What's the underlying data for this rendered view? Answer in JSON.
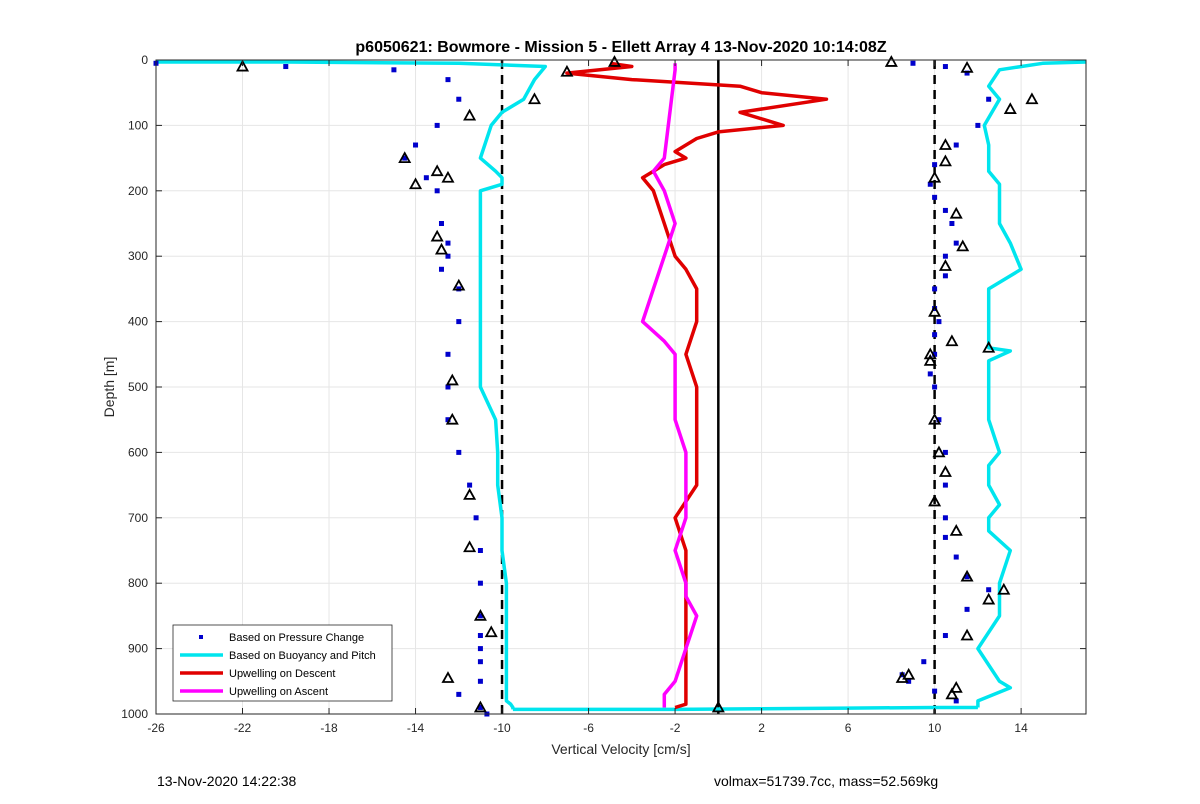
{
  "title": "p6050621: Bowmore - Mission 5 - Ellett Array 4 13-Nov-2020 10:14:08Z",
  "footer_left": "13-Nov-2020 14:22:38",
  "footer_right": "volmax=51739.7cc, mass=52.569kg",
  "chart_data": {
    "type": "scatter",
    "title": "p6050621: Bowmore - Mission 5 - Ellett Array 4 13-Nov-2020 10:14:08Z",
    "xlabel": "Vertical Velocity [cm/s]",
    "ylabel": "Depth [m]",
    "xlim": [
      -26,
      17
    ],
    "ylim": [
      0,
      1000
    ],
    "y_reversed": true,
    "xticks": [
      -26,
      -22,
      -18,
      -14,
      -10,
      -6,
      -2,
      2,
      6,
      10,
      14
    ],
    "xtick_labels": [
      "-26",
      "-22",
      "-18",
      "-14",
      "-10",
      "-6",
      "-2",
      "2",
      "6",
      "10",
      "14"
    ],
    "yticks": [
      0,
      100,
      200,
      300,
      400,
      500,
      600,
      700,
      800,
      900,
      1000
    ],
    "ytick_labels": [
      "0",
      "100",
      "200",
      "300",
      "400",
      "500",
      "600",
      "700",
      "800",
      "900",
      "1000"
    ],
    "grid": true,
    "legend_position": "bottom-left",
    "reference_lines": [
      {
        "x": -10,
        "style": "dashed",
        "color": "#000000"
      },
      {
        "x": 0,
        "style": "solid",
        "color": "#000000"
      },
      {
        "x": 10,
        "style": "dashed",
        "color": "#000000"
      }
    ],
    "series": [
      {
        "name": "Based on Pressure Change",
        "marker": "dot",
        "color": "#0000CC",
        "segments": [
          {
            "x": [
              -26,
              -20,
              -15,
              -12.5,
              -12,
              -13,
              -14,
              -14.5,
              -13.5,
              -13,
              -12.8,
              -12.5,
              -12.5,
              -12.8,
              -12,
              -12,
              -12.5,
              -12.5,
              -12.5,
              -12,
              -11.5,
              -11.2,
              -11,
              -11,
              -11,
              -11,
              -11,
              -11,
              -11,
              -12,
              -11,
              -10.7
            ],
            "y": [
              5,
              10,
              15,
              30,
              60,
              100,
              130,
              150,
              180,
              200,
              250,
              280,
              300,
              320,
              350,
              400,
              450,
              500,
              550,
              600,
              650,
              700,
              750,
              800,
              850,
              880,
              900,
              920,
              950,
              970,
              990,
              1000
            ]
          },
          {
            "x": [
              9,
              10.5,
              11.5,
              12.5,
              12,
              11,
              10,
              9.8,
              10,
              10.5,
              10.8,
              11,
              10.5,
              10.5,
              10,
              10,
              10.2,
              10,
              10,
              9.8,
              10,
              10.2,
              10.5,
              10.5,
              10.5,
              10.5,
              11,
              11.5,
              12.5,
              11.5,
              10.5,
              9.5,
              8.5,
              8.8,
              10,
              11
            ],
            "y": [
              5,
              10,
              20,
              60,
              100,
              130,
              160,
              190,
              210,
              230,
              250,
              280,
              300,
              330,
              350,
              380,
              400,
              420,
              450,
              480,
              500,
              550,
              600,
              650,
              700,
              730,
              760,
              790,
              810,
              840,
              880,
              920,
              940,
              950,
              965,
              980
            ]
          }
        ]
      },
      {
        "name": "Based on Buoyancy and Pitch",
        "marker": "line",
        "color": "#00E5EE",
        "segments": [
          {
            "x": [
              -26,
              -20,
              -12,
              -8,
              -8.5,
              -9,
              -10,
              -10.5,
              -11,
              -10.3,
              -10,
              -10,
              -11,
              -11,
              -11,
              -11,
              -11,
              -11,
              -11,
              -11,
              -10.3,
              -10.2,
              -10.2,
              -10,
              -10,
              -10,
              -9.8,
              -9.8,
              -9.8,
              -9.8,
              -9.8,
              -9.6,
              -9.5,
              -9.5
            ],
            "y": [
              3,
              3,
              5,
              10,
              30,
              60,
              80,
              100,
              150,
              170,
              180,
              190,
              200,
              250,
              300,
              350,
              400,
              450,
              480,
              500,
              550,
              600,
              650,
              700,
              720,
              750,
              800,
              850,
              900,
              950,
              980,
              985,
              990,
              993
            ]
          },
          {
            "x": [
              -9.5,
              -6,
              -2,
              2,
              6,
              10,
              12
            ],
            "y": [
              993,
              993,
              993,
              992,
              991,
              990,
              990
            ]
          },
          {
            "x": [
              17,
              15,
              13,
              12.5,
              13,
              12.3,
              12.5,
              12.5,
              12.5,
              13,
              13,
              13,
              13.5,
              14,
              12.5,
              12.5,
              12.5,
              12.5,
              12.5,
              12.5,
              13.5,
              12.5,
              12.5,
              12.5,
              13,
              12.5,
              12.5,
              13,
              12.5,
              12.5,
              13.5,
              13,
              13,
              13,
              12,
              13,
              13.5,
              12,
              12
            ],
            "y": [
              3,
              5,
              15,
              40,
              60,
              100,
              130,
              150,
              170,
              190,
              220,
              250,
              280,
              320,
              350,
              380,
              400,
              420,
              430,
              440,
              445,
              460,
              500,
              550,
              600,
              620,
              650,
              680,
              700,
              720,
              750,
              800,
              820,
              850,
              900,
              950,
              960,
              980,
              990
            ]
          }
        ]
      },
      {
        "name": "Upwelling on Descent",
        "marker": "line",
        "color": "#E00000",
        "segments": [
          {
            "x": [
              -5,
              -4,
              -7,
              -4,
              1,
              2,
              5,
              1,
              3,
              0,
              -1,
              -2,
              -1.5,
              -2.5,
              -3,
              -3.5,
              -3,
              -2.5,
              -2,
              -1.5,
              -1,
              -1,
              -1.5,
              -1,
              -1,
              -1,
              -1,
              -2,
              -1.5,
              -1.5,
              -1.5,
              -1.5,
              -1.5,
              -1.5,
              -1.5,
              -2
            ],
            "y": [
              5,
              10,
              20,
              30,
              40,
              50,
              60,
              80,
              100,
              110,
              120,
              140,
              150,
              160,
              170,
              180,
              200,
              250,
              300,
              320,
              350,
              400,
              450,
              500,
              550,
              600,
              650,
              700,
              750,
              800,
              850,
              900,
              950,
              970,
              985,
              990
            ]
          }
        ]
      },
      {
        "name": "Upwelling on Ascent",
        "marker": "line",
        "color": "#FF00FF",
        "segments": [
          {
            "x": [
              -2,
              -2,
              -2.5,
              -3,
              -2.5,
              -2,
              -2.5,
              -3,
              -3.5,
              -2.5,
              -2,
              -2,
              -2,
              -1.5,
              -1.5,
              -1.5,
              -2,
              -1.5,
              -1.5,
              -1,
              -1.5,
              -2,
              -2.5,
              -2.5,
              -2.5
            ],
            "y": [
              5,
              15,
              150,
              170,
              200,
              250,
              300,
              350,
              400,
              430,
              450,
              500,
              550,
              600,
              650,
              700,
              750,
              800,
              820,
              850,
              900,
              950,
              970,
              985,
              990
            ]
          }
        ]
      }
    ],
    "triangle_markers": [
      {
        "x": -22,
        "y": 10
      },
      {
        "x": -7,
        "y": 18
      },
      {
        "x": -4.8,
        "y": 3
      },
      {
        "x": -8.5,
        "y": 60
      },
      {
        "x": -11.5,
        "y": 85
      },
      {
        "x": -14.5,
        "y": 150
      },
      {
        "x": -13,
        "y": 170
      },
      {
        "x": -12.5,
        "y": 180
      },
      {
        "x": -14,
        "y": 190
      },
      {
        "x": -13,
        "y": 270
      },
      {
        "x": -12.8,
        "y": 290
      },
      {
        "x": -12,
        "y": 345
      },
      {
        "x": -12.3,
        "y": 490
      },
      {
        "x": -12.3,
        "y": 550
      },
      {
        "x": -11.5,
        "y": 665
      },
      {
        "x": -11.5,
        "y": 745
      },
      {
        "x": -11,
        "y": 850
      },
      {
        "x": -10.5,
        "y": 875
      },
      {
        "x": -12.5,
        "y": 945
      },
      {
        "x": -11,
        "y": 990
      },
      {
        "x": 0,
        "y": 990
      },
      {
        "x": 8,
        "y": 3
      },
      {
        "x": 11.5,
        "y": 12
      },
      {
        "x": 14.5,
        "y": 60
      },
      {
        "x": 13.5,
        "y": 75
      },
      {
        "x": 10.5,
        "y": 130
      },
      {
        "x": 10.5,
        "y": 155
      },
      {
        "x": 10,
        "y": 180
      },
      {
        "x": 11,
        "y": 235
      },
      {
        "x": 11.3,
        "y": 285
      },
      {
        "x": 10.5,
        "y": 315
      },
      {
        "x": 10,
        "y": 385
      },
      {
        "x": 10.8,
        "y": 430
      },
      {
        "x": 12.5,
        "y": 440
      },
      {
        "x": 9.8,
        "y": 450
      },
      {
        "x": 9.8,
        "y": 460
      },
      {
        "x": 10,
        "y": 550
      },
      {
        "x": 10.2,
        "y": 600
      },
      {
        "x": 10.5,
        "y": 630
      },
      {
        "x": 10,
        "y": 675
      },
      {
        "x": 11,
        "y": 720
      },
      {
        "x": 11.5,
        "y": 790
      },
      {
        "x": 13.2,
        "y": 810
      },
      {
        "x": 12.5,
        "y": 825
      },
      {
        "x": 11.5,
        "y": 880
      },
      {
        "x": 8.5,
        "y": 945
      },
      {
        "x": 8.8,
        "y": 940
      },
      {
        "x": 11,
        "y": 960
      },
      {
        "x": 10.8,
        "y": 970
      }
    ],
    "legend": [
      "Based on Pressure Change",
      "Based on Buoyancy and Pitch",
      "Upwelling on Descent",
      "Upwelling on Ascent"
    ]
  }
}
